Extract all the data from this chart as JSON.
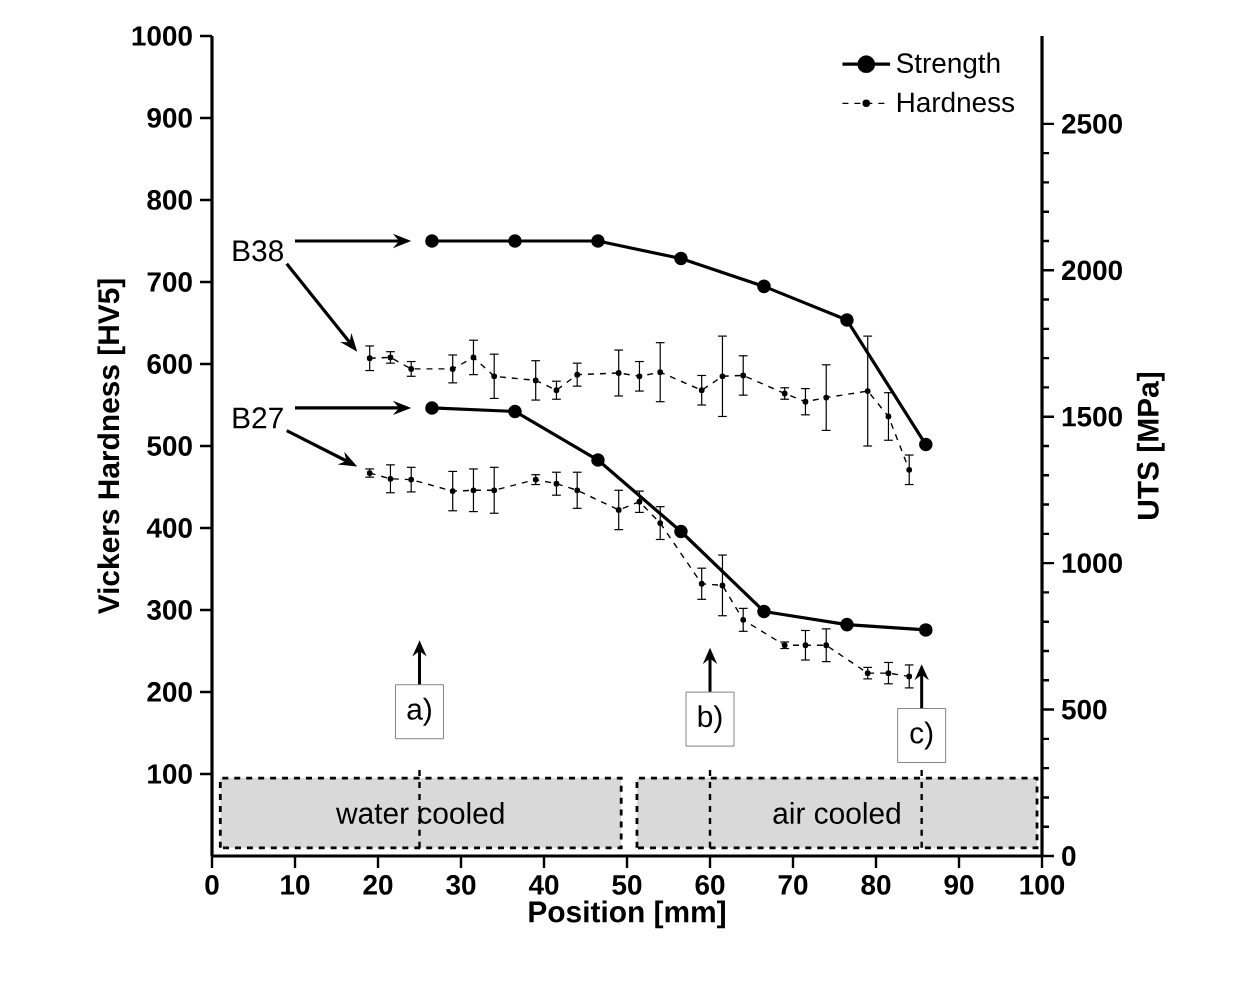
{
  "chart_data": {
    "type": "line",
    "xlabel": "Position [mm]",
    "ylabel": "Vickers Hardness [HV5]",
    "y2label": "UTS [MPa]",
    "xlim": [
      0,
      100
    ],
    "xticks": [
      0,
      10,
      20,
      30,
      40,
      50,
      60,
      70,
      80,
      90,
      100
    ],
    "ylim": [
      0,
      1000
    ],
    "yticks": [
      100,
      200,
      300,
      400,
      500,
      600,
      700,
      800,
      900,
      1000
    ],
    "y2lim": [
      0,
      2800
    ],
    "y2ticks": [
      0,
      500,
      1000,
      1500,
      2000,
      2500
    ],
    "legend": "top right",
    "series": [
      {
        "name": "Strength",
        "color": "#000000",
        "axis": "y2",
        "marker": "circle",
        "line_style": "solid",
        "x": [
          26.5,
          36.5,
          46.5,
          56.5,
          66.5,
          76.5,
          86
        ],
        "values": [
          2100,
          2100,
          2100,
          2040,
          1945,
          1830,
          1405
        ]
      },
      {
        "color": "#000000",
        "axis": "y2",
        "marker": "circle",
        "line_style": "solid",
        "x": [
          26.5,
          36.5,
          46.5,
          56.5,
          66.5,
          76.5,
          86
        ],
        "values": [
          1530,
          1518,
          1352,
          1108,
          835,
          790,
          772
        ]
      },
      {
        "name": "Hardness",
        "color": "#000000",
        "marker": "circle",
        "line_style": "dashed",
        "x": [
          19,
          21.5,
          24,
          29,
          31.5,
          34,
          39,
          41.5,
          44,
          49,
          51.5,
          54,
          59,
          61.5,
          64,
          69,
          71.5,
          74,
          79,
          81.5,
          84
        ],
        "values": [
          607,
          608,
          594,
          594,
          608,
          585,
          580,
          568,
          587,
          589,
          585,
          590,
          568,
          585,
          586,
          564,
          554,
          559,
          567,
          536,
          471
        ],
        "errors": [
          15,
          7,
          9,
          17,
          21,
          27,
          24,
          11,
          14,
          28,
          18,
          36,
          18,
          49,
          24,
          7,
          16,
          40,
          67,
          29,
          18
        ]
      },
      {
        "color": "#000000",
        "marker": "circle",
        "line_style": "dashed",
        "x": [
          19,
          21.5,
          24,
          29,
          31.5,
          34,
          39,
          41.5,
          44,
          49,
          51.5,
          54,
          59,
          61.5,
          64,
          69,
          71.5,
          74,
          79,
          81.5,
          84
        ],
        "values": [
          467,
          460,
          459,
          445,
          446,
          446,
          459,
          454,
          446,
          422,
          432,
          406,
          332,
          330,
          288,
          257,
          257,
          257,
          223,
          223,
          219
        ],
        "errors": [
          5,
          17,
          15,
          24,
          26,
          28,
          6,
          14,
          22,
          24,
          13,
          20,
          19,
          37,
          14,
          4,
          18,
          20,
          7,
          13,
          14
        ]
      }
    ],
    "bands": [
      {
        "axis": "x",
        "from": 1,
        "to": 49.3,
        "label": "water cooled",
        "color": "#d9d9d9"
      },
      {
        "axis": "x",
        "from": 51.2,
        "to": 99.4,
        "label": "air cooled",
        "color": "#d9d9d9"
      }
    ],
    "annotations": [
      "B38",
      "B27",
      "a)",
      "b)",
      "c)"
    ]
  }
}
